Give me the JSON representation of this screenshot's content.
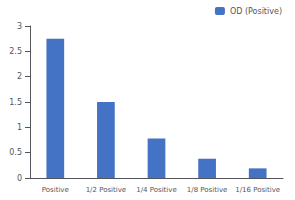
{
  "chart_data": {
    "type": "bar",
    "categories": [
      "Positive",
      "1/2 Positive",
      "1/4 Positive",
      "1/8 Positive",
      "1/16 Positive"
    ],
    "series": [
      {
        "name": "OD (Positive)",
        "color": "#4472c4",
        "values": [
          2.75,
          1.5,
          0.78,
          0.38,
          0.19
        ]
      }
    ],
    "ylim": [
      0,
      3.0
    ],
    "yticks": [
      0,
      0.5,
      1.0,
      1.5,
      2.0,
      2.5,
      3.0
    ],
    "grid": false,
    "legend": "upper right"
  }
}
